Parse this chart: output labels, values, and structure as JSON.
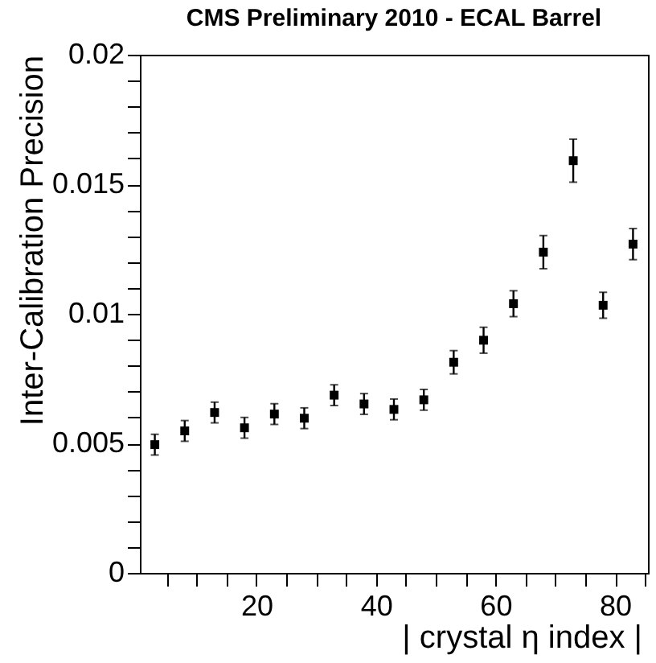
{
  "chart_data": {
    "type": "scatter",
    "title": "CMS Preliminary 2010 - ECAL Barrel",
    "xlabel": "| crystal η index |",
    "ylabel": "Inter-Calibration Precision",
    "x": [
      3,
      8,
      13,
      18,
      23,
      28,
      33,
      38,
      43,
      48,
      53,
      58,
      63,
      68,
      73,
      78,
      83
    ],
    "values": [
      0.00495,
      0.00548,
      0.00619,
      0.0056,
      0.00613,
      0.00597,
      0.00686,
      0.00652,
      0.00631,
      0.00668,
      0.00813,
      0.00898,
      0.01039,
      0.01238,
      0.01591,
      0.01033,
      0.01269
    ],
    "errors": [
      0.0004,
      0.0004,
      0.0004,
      0.0004,
      0.0004,
      0.0004,
      0.0004,
      0.0004,
      0.0004,
      0.0004,
      0.00045,
      0.0005,
      0.0005,
      0.00064,
      0.00083,
      0.0005,
      0.0006
    ],
    "color": "#000000",
    "marker": "square",
    "grid": false,
    "xlim": [
      0.5,
      85.5
    ],
    "xticks": [
      {
        "value": 5,
        "label": null
      },
      {
        "value": 10,
        "label": null
      },
      {
        "value": 15,
        "label": null
      },
      20,
      {
        "value": 25,
        "label": null
      },
      {
        "value": 30,
        "label": null
      },
      {
        "value": 35,
        "label": null
      },
      40,
      {
        "value": 45,
        "label": null
      },
      {
        "value": 50,
        "label": null
      },
      {
        "value": 55,
        "label": null
      },
      60,
      {
        "value": 65,
        "label": null
      },
      {
        "value": 70,
        "label": null
      },
      {
        "value": 75,
        "label": null
      },
      80,
      {
        "value": 85,
        "label": null
      }
    ],
    "ylim": [
      0,
      0.02
    ],
    "yticks": [
      0,
      {
        "value": 0.001,
        "label": null
      },
      {
        "value": 0.002,
        "label": null
      },
      {
        "value": 0.003,
        "label": null
      },
      {
        "value": 0.004,
        "label": null
      },
      0.005,
      {
        "value": 0.006,
        "label": null
      },
      {
        "value": 0.007,
        "label": null
      },
      {
        "value": 0.008,
        "label": null
      },
      {
        "value": 0.009,
        "label": null
      },
      0.01,
      {
        "value": 0.011,
        "label": null
      },
      {
        "value": 0.012,
        "label": null
      },
      {
        "value": 0.013,
        "label": null
      },
      {
        "value": 0.014,
        "label": null
      },
      0.015,
      {
        "value": 0.016,
        "label": null
      },
      {
        "value": 0.017,
        "label": null
      },
      {
        "value": 0.018,
        "label": null
      },
      {
        "value": 0.019,
        "label": null
      },
      0.02
    ]
  }
}
